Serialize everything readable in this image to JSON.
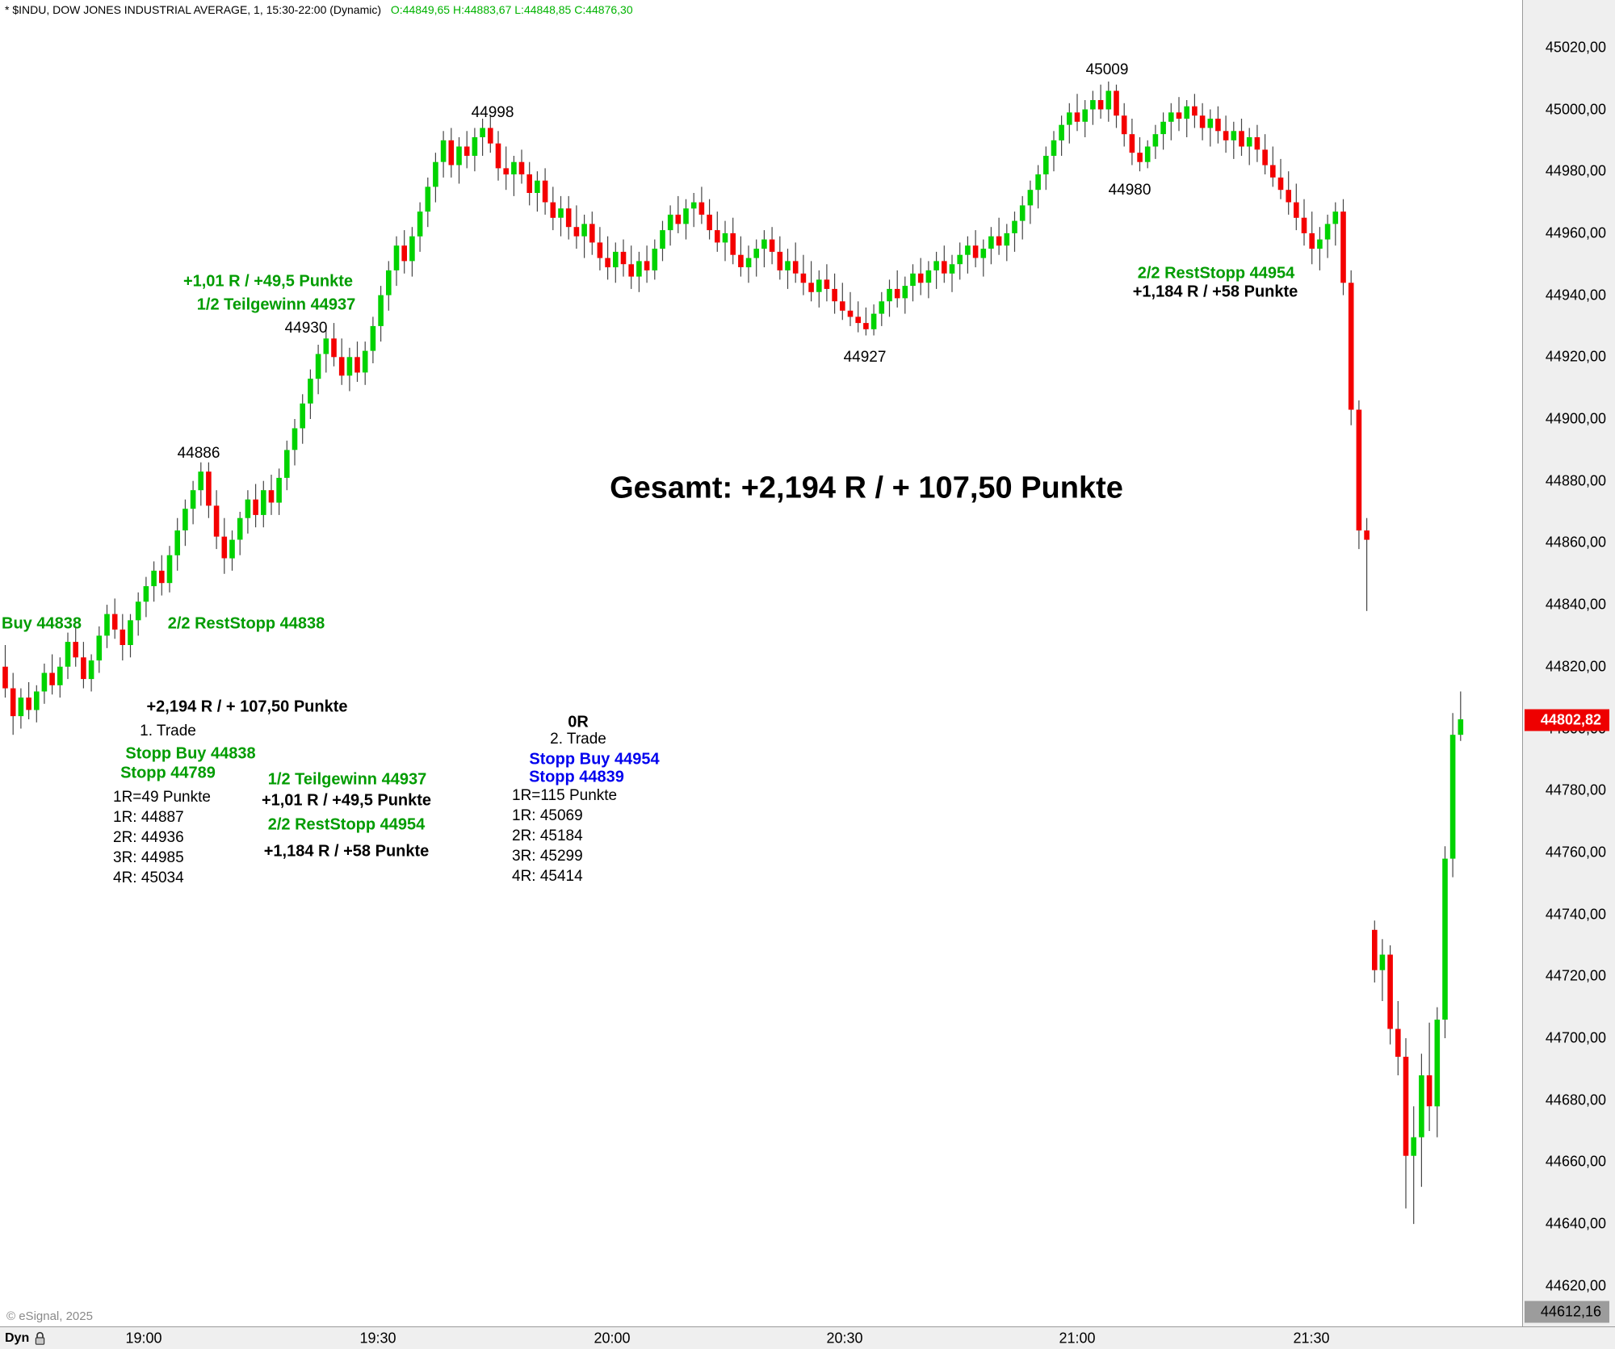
{
  "header": {
    "symbol_info": "* $INDU, DOW JONES INDUSTRIAL AVERAGE, 1, 15:30-22:00 (Dynamic)",
    "ohlc": "O:44849,65 H:44883,67 L:44848,85 C:44876,30"
  },
  "price_axis": {
    "labels": [
      "45020,00",
      "45000,00",
      "44980,00",
      "44960,00",
      "44940,00",
      "44920,00",
      "44900,00",
      "44880,00",
      "44860,00",
      "44840,00",
      "44820,00",
      "44800,00",
      "44780,00",
      "44760,00",
      "44740,00",
      "44720,00",
      "44700,00",
      "44680,00",
      "44660,00",
      "44640,00",
      "44620,00"
    ],
    "current_price_tag": "44802,82",
    "low_tag": "44612,16"
  },
  "time_axis": {
    "labels": [
      "19:00",
      "19:30",
      "20:00",
      "20:30",
      "21:00",
      "21:30"
    ]
  },
  "footer": {
    "copyright": "© eSignal, 2025",
    "mode": "Dyn"
  },
  "colors": {
    "annotation_green": "#009c00",
    "annotation_blue": "#0000ee",
    "header_ohlc_green": "#00b300",
    "price_tag_red": "#ee0000",
    "low_tag_gray": "#9c9c9c"
  },
  "annotations": {
    "peak_45009": "45009",
    "peak_44998": "44998",
    "dip_44980": "44980",
    "high_44930": "44930",
    "high_44886": "44886",
    "low_44927": "44927",
    "trade1_result_top": "+1,01 R / +49,5 Punkte",
    "trade1_teilgewinn_top": "1/2 Teilgewinn 44937",
    "trade2_reststopp_top": "2/2 RestStopp 44954",
    "trade2_result_top": "+1,184 R / +58 Punkte",
    "gesamt": "Gesamt: +2,194 R / + 107,50 Punkte",
    "buy_left": "Buy 44838",
    "reststopp_left": "2/2 RestStopp 44838",
    "trade1_total": "+2,194 R / + 107,50 Punkte",
    "trade1_label": "1. Trade",
    "trade1_stopp_buy": "Stopp Buy 44838",
    "trade1_stopp": "Stopp 44789",
    "trade1_r_lines": [
      "1R=49 Punkte",
      "1R: 44887",
      "2R: 44936",
      "3R: 44985",
      "4R: 45034"
    ],
    "trade1_teilgewinn": "1/2 Teilgewinn 44937",
    "trade1_result": "+1,01 R / +49,5 Punkte",
    "trade1_reststopp": "2/2 RestStopp 44954",
    "trade1_result2": "+1,184 R / +58 Punkte",
    "trade2_zero": "0R",
    "trade2_label": "2. Trade",
    "trade2_stopp_buy": "Stopp Buy 44954",
    "trade2_stopp": "Stopp 44839",
    "trade2_r_lines": [
      "1R=115 Punkte",
      "1R: 45069",
      "2R: 45184",
      "3R: 45299",
      "4R: 45414"
    ]
  },
  "chart_data": {
    "type": "candlestick",
    "title": "$INDU Dow Jones Industrial Average, 1-minute",
    "interval_minutes": 1,
    "session": "15:30-22:00",
    "visible_time_start": "18:42",
    "x_tick_labels": [
      "19:00",
      "19:30",
      "20:00",
      "20:30",
      "21:00",
      "21:30"
    ],
    "y_axis": {
      "min": 44620,
      "max": 45020,
      "tick_step": 20
    },
    "last_price": 44802.82,
    "session_low_tag": 44612.16,
    "grid": false,
    "up_color": "#00d300",
    "down_color": "#f40000",
    "wick_color": "#454545",
    "candles": [
      [
        44820,
        44827,
        44810,
        44813
      ],
      [
        44813,
        44818,
        44798,
        44804
      ],
      [
        44804,
        44813,
        44800,
        44810
      ],
      [
        44810,
        44815,
        44803,
        44806
      ],
      [
        44806,
        44814,
        44802,
        44812
      ],
      [
        44812,
        44821,
        44808,
        44818
      ],
      [
        44818,
        44824,
        44811,
        44814
      ],
      [
        44814,
        44823,
        44810,
        44820
      ],
      [
        44820,
        44831,
        44816,
        44828
      ],
      [
        44828,
        44833,
        44820,
        44823
      ],
      [
        44823,
        44828,
        44813,
        44816
      ],
      [
        44816,
        44824,
        44812,
        44822
      ],
      [
        44822,
        44833,
        44818,
        44830
      ],
      [
        44830,
        44840,
        44826,
        44837
      ],
      [
        44837,
        44842,
        44829,
        44832
      ],
      [
        44832,
        44837,
        44822,
        44827
      ],
      [
        44827,
        44837,
        44823,
        44835
      ],
      [
        44835,
        44844,
        44830,
        44841
      ],
      [
        44841,
        44849,
        44836,
        44846
      ],
      [
        44846,
        44854,
        44841,
        44851
      ],
      [
        44851,
        44856,
        44843,
        44847
      ],
      [
        44847,
        44859,
        44844,
        44856
      ],
      [
        44856,
        44868,
        44851,
        44864
      ],
      [
        44864,
        44874,
        44859,
        44871
      ],
      [
        44871,
        44880,
        44866,
        44877
      ],
      [
        44877,
        44886,
        44872,
        44883
      ],
      [
        44883,
        44886,
        44868,
        44872
      ],
      [
        44872,
        44877,
        44858,
        44862
      ],
      [
        44862,
        44868,
        44850,
        44855
      ],
      [
        44855,
        44864,
        44851,
        44861
      ],
      [
        44861,
        44870,
        44856,
        44868
      ],
      [
        44868,
        44877,
        44863,
        44874
      ],
      [
        44874,
        44879,
        44865,
        44869
      ],
      [
        44869,
        44880,
        44865,
        44877
      ],
      [
        44877,
        44882,
        44869,
        44873
      ],
      [
        44873,
        44884,
        44869,
        44881
      ],
      [
        44881,
        44893,
        44877,
        44890
      ],
      [
        44890,
        44900,
        44885,
        44897
      ],
      [
        44897,
        44908,
        44892,
        44905
      ],
      [
        44905,
        44916,
        44900,
        44913
      ],
      [
        44913,
        44924,
        44908,
        44921
      ],
      [
        44921,
        44930,
        44915,
        44926
      ],
      [
        44926,
        44931,
        44917,
        44920
      ],
      [
        44920,
        44926,
        44911,
        44914
      ],
      [
        44914,
        44923,
        44909,
        44920
      ],
      [
        44920,
        44925,
        44912,
        44915
      ],
      [
        44915,
        44925,
        44911,
        44922
      ],
      [
        44922,
        44933,
        44918,
        44930
      ],
      [
        44930,
        44943,
        44925,
        44940
      ],
      [
        44940,
        44951,
        44935,
        44948
      ],
      [
        44948,
        44959,
        44943,
        44956
      ],
      [
        44956,
        44961,
        44947,
        44951
      ],
      [
        44951,
        44962,
        44946,
        44959
      ],
      [
        44959,
        44970,
        44954,
        44967
      ],
      [
        44967,
        44978,
        44962,
        44975
      ],
      [
        44975,
        44986,
        44970,
        44983
      ],
      [
        44983,
        44993,
        44978,
        44990
      ],
      [
        44990,
        44994,
        44978,
        44982
      ],
      [
        44982,
        44991,
        44976,
        44988
      ],
      [
        44988,
        44993,
        44981,
        44985
      ],
      [
        44985,
        44994,
        44980,
        44991
      ],
      [
        44991,
        44997,
        44985,
        44994
      ],
      [
        44994,
        44998,
        44986,
        44989
      ],
      [
        44989,
        44993,
        44977,
        44981
      ],
      [
        44981,
        44988,
        44974,
        44979
      ],
      [
        44979,
        44985,
        44972,
        44983
      ],
      [
        44983,
        44987,
        44976,
        44979
      ],
      [
        44979,
        44983,
        44969,
        44973
      ],
      [
        44973,
        44980,
        44967,
        44977
      ],
      [
        44977,
        44981,
        44966,
        44970
      ],
      [
        44970,
        44975,
        44961,
        44965
      ],
      [
        44965,
        44972,
        44959,
        44968
      ],
      [
        44968,
        44972,
        44958,
        44962
      ],
      [
        44962,
        44969,
        44955,
        44959
      ],
      [
        44959,
        44966,
        44952,
        44963
      ],
      [
        44963,
        44967,
        44953,
        44957
      ],
      [
        44957,
        44962,
        44948,
        44952
      ],
      [
        44952,
        44959,
        44945,
        44949
      ],
      [
        44949,
        44957,
        44944,
        44954
      ],
      [
        44954,
        44958,
        44946,
        44950
      ],
      [
        44950,
        44956,
        44942,
        44946
      ],
      [
        44946,
        44954,
        44941,
        44951
      ],
      [
        44951,
        44956,
        44944,
        44948
      ],
      [
        44948,
        44958,
        44945,
        44955
      ],
      [
        44955,
        44964,
        44951,
        44961
      ],
      [
        44961,
        44969,
        44956,
        44966
      ],
      [
        44966,
        44972,
        44960,
        44963
      ],
      [
        44963,
        44971,
        44958,
        44968
      ],
      [
        44968,
        44973,
        44962,
        44970
      ],
      [
        44970,
        44975,
        44963,
        44966
      ],
      [
        44966,
        44971,
        44958,
        44961
      ],
      [
        44961,
        44967,
        44954,
        44957
      ],
      [
        44957,
        44964,
        44951,
        44960
      ],
      [
        44960,
        44965,
        44950,
        44953
      ],
      [
        44953,
        44959,
        44946,
        44949
      ],
      [
        44949,
        44956,
        44944,
        44952
      ],
      [
        44952,
        44958,
        44946,
        44955
      ],
      [
        44955,
        44961,
        44949,
        44958
      ],
      [
        44958,
        44962,
        44950,
        44954
      ],
      [
        44954,
        44959,
        44945,
        44948
      ],
      [
        44948,
        44955,
        44942,
        44951
      ],
      [
        44951,
        44957,
        44944,
        44947
      ],
      [
        44947,
        44953,
        44940,
        44944
      ],
      [
        44944,
        44951,
        44938,
        44941
      ],
      [
        44941,
        44948,
        44936,
        44945
      ],
      [
        44945,
        44950,
        44938,
        44942
      ],
      [
        44942,
        44947,
        44934,
        44938
      ],
      [
        44938,
        44944,
        44932,
        44935
      ],
      [
        44935,
        44941,
        44930,
        44933
      ],
      [
        44933,
        44938,
        44928,
        44931
      ],
      [
        44931,
        44936,
        44927,
        44929
      ],
      [
        44929,
        44937,
        44927,
        44934
      ],
      [
        44934,
        44941,
        44930,
        44938
      ],
      [
        44938,
        44945,
        44933,
        44942
      ],
      [
        44942,
        44948,
        44936,
        44939
      ],
      [
        44939,
        44946,
        44934,
        44943
      ],
      [
        44943,
        44950,
        44938,
        44947
      ],
      [
        44947,
        44952,
        44940,
        44944
      ],
      [
        44944,
        44951,
        44939,
        44948
      ],
      [
        44948,
        44954,
        44942,
        44951
      ],
      [
        44951,
        44956,
        44944,
        44947
      ],
      [
        44947,
        44953,
        44941,
        44950
      ],
      [
        44950,
        44957,
        44945,
        44953
      ],
      [
        44953,
        44959,
        44947,
        44956
      ],
      [
        44956,
        44961,
        44949,
        44952
      ],
      [
        44952,
        44958,
        44946,
        44955
      ],
      [
        44955,
        44962,
        44950,
        44959
      ],
      [
        44959,
        44965,
        44953,
        44956
      ],
      [
        44956,
        44963,
        44951,
        44960
      ],
      [
        44960,
        44967,
        44954,
        44964
      ],
      [
        44964,
        44972,
        44958,
        44969
      ],
      [
        44969,
        44977,
        44963,
        44974
      ],
      [
        44974,
        44982,
        44968,
        44979
      ],
      [
        44979,
        44988,
        44974,
        44985
      ],
      [
        44985,
        44993,
        44980,
        44990
      ],
      [
        44990,
        44998,
        44985,
        44995
      ],
      [
        44995,
        45002,
        44989,
        44999
      ],
      [
        44999,
        45005,
        44993,
        44996
      ],
      [
        44996,
        45003,
        44991,
        45000
      ],
      [
        45000,
        45006,
        44995,
        45003
      ],
      [
        45003,
        45008,
        44997,
        45000
      ],
      [
        45000,
        45009,
        44996,
        45006
      ],
      [
        45006,
        45008,
        44994,
        44998
      ],
      [
        44998,
        45002,
        44988,
        44992
      ],
      [
        44992,
        44997,
        44982,
        44986
      ],
      [
        44986,
        44991,
        44980,
        44983
      ],
      [
        44983,
        44990,
        44981,
        44988
      ],
      [
        44988,
        44995,
        44984,
        44992
      ],
      [
        44992,
        44999,
        44987,
        44996
      ],
      [
        44996,
        45002,
        44990,
        44999
      ],
      [
        44999,
        45004,
        44993,
        44997
      ],
      [
        44997,
        45003,
        44991,
        45001
      ],
      [
        45001,
        45005,
        44994,
        44998
      ],
      [
        44998,
        45002,
        44990,
        44994
      ],
      [
        44994,
        45000,
        44988,
        44997
      ],
      [
        44997,
        45001,
        44989,
        44993
      ],
      [
        44993,
        44998,
        44986,
        44990
      ],
      [
        44990,
        44996,
        44984,
        44993
      ],
      [
        44993,
        44997,
        44985,
        44988
      ],
      [
        44988,
        44994,
        44982,
        44991
      ],
      [
        44991,
        44995,
        44983,
        44987
      ],
      [
        44987,
        44992,
        44979,
        44982
      ],
      [
        44982,
        44988,
        44975,
        44978
      ],
      [
        44978,
        44984,
        44971,
        44974
      ],
      [
        44974,
        44980,
        44966,
        44970
      ],
      [
        44970,
        44976,
        44961,
        44965
      ],
      [
        44965,
        44971,
        44956,
        44960
      ],
      [
        44960,
        44967,
        44950,
        44955
      ],
      [
        44955,
        44962,
        44948,
        44958
      ],
      [
        44958,
        44966,
        44952,
        44963
      ],
      [
        44963,
        44970,
        44956,
        44967
      ],
      [
        44967,
        44971,
        44940,
        44944
      ],
      [
        44944,
        44948,
        44898,
        44903
      ],
      [
        44903,
        44906,
        44858,
        44864
      ],
      [
        44864,
        44868,
        44838,
        44861
      ],
      [
        44735,
        44738,
        44718,
        44722
      ],
      [
        44722,
        44732,
        44712,
        44727
      ],
      [
        44727,
        44730,
        44698,
        44703
      ],
      [
        44703,
        44712,
        44688,
        44694
      ],
      [
        44694,
        44700,
        44645,
        44662
      ],
      [
        44662,
        44678,
        44640,
        44668
      ],
      [
        44668,
        44695,
        44652,
        44688
      ],
      [
        44688,
        44705,
        44670,
        44678
      ],
      [
        44678,
        44710,
        44668,
        44706
      ],
      [
        44706,
        44762,
        44700,
        44758
      ],
      [
        44758,
        44805,
        44752,
        44798
      ],
      [
        44798,
        44812,
        44796,
        44803
      ]
    ]
  }
}
